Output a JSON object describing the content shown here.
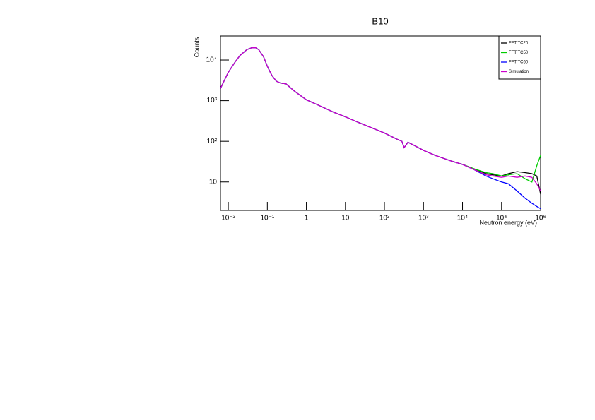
{
  "chart_data": {
    "type": "line",
    "title": "B10",
    "x_label": "Neutron energy (eV)",
    "y_label": "Counts",
    "x": [
      0.0063,
      0.008,
      0.01,
      0.015,
      0.02,
      0.03,
      0.04,
      0.05,
      0.06,
      0.08,
      0.1,
      0.13,
      0.17,
      0.22,
      0.3,
      0.5,
      1,
      2,
      5,
      10,
      20,
      50,
      100,
      200,
      280,
      320,
      400,
      600,
      1000,
      2000,
      5000,
      10000,
      20000,
      40000,
      60000,
      100000,
      150000,
      250000,
      400000,
      600000,
      800000,
      1000000
    ],
    "series": [
      {
        "name": "FFT TC20",
        "color": "#000000",
        "values": [
          2000,
          3200,
          5000,
          9000,
          13000,
          18000,
          20000,
          20000,
          18000,
          12000,
          7000,
          4200,
          3000,
          2700,
          2600,
          1700,
          1050,
          780,
          520,
          400,
          300,
          210,
          160,
          115,
          100,
          70,
          95,
          78,
          60,
          45,
          33,
          27,
          21,
          16,
          15,
          14,
          16,
          18,
          17,
          16,
          14,
          5
        ]
      },
      {
        "name": "FFT TC50",
        "color": "#00cc00",
        "values": [
          2000,
          3200,
          5000,
          9000,
          13000,
          18000,
          20000,
          20000,
          18000,
          12000,
          7000,
          4200,
          3000,
          2700,
          2600,
          1700,
          1050,
          780,
          520,
          400,
          300,
          210,
          160,
          115,
          100,
          70,
          95,
          78,
          60,
          45,
          33,
          27,
          21,
          17,
          16,
          14,
          15,
          16,
          12,
          10,
          25,
          45
        ]
      },
      {
        "name": "FFT TC60",
        "color": "#0000ff",
        "values": [
          2000,
          3200,
          5000,
          9000,
          13000,
          18000,
          20000,
          20000,
          18000,
          12000,
          7000,
          4200,
          3000,
          2700,
          2600,
          1700,
          1050,
          780,
          520,
          400,
          300,
          210,
          160,
          115,
          100,
          70,
          95,
          78,
          60,
          45,
          33,
          27,
          20,
          14,
          12,
          10,
          9,
          6,
          4,
          3,
          2.5,
          2.2
        ]
      },
      {
        "name": "Simulation",
        "color": "#cc00cc",
        "values": [
          2000,
          3200,
          5000,
          9000,
          13000,
          18000,
          20000,
          20000,
          18000,
          12000,
          7000,
          4200,
          3000,
          2700,
          2600,
          1700,
          1050,
          780,
          520,
          400,
          300,
          210,
          160,
          115,
          100,
          70,
          95,
          78,
          60,
          45,
          33,
          27,
          20,
          15,
          14,
          13,
          14,
          13,
          14,
          13,
          9,
          6
        ]
      }
    ],
    "xlog": true,
    "ylog": true,
    "xlim": [
      0.0063,
      1000000
    ],
    "ylim": [
      2,
      39000
    ],
    "xticks": [
      {
        "value": 0.01,
        "label": "10⁻²"
      },
      {
        "value": 0.1,
        "label": "10⁻¹"
      },
      1,
      10,
      {
        "value": 100,
        "label": "10²"
      },
      {
        "value": 1000,
        "label": "10³"
      },
      {
        "value": 10000,
        "label": "10⁴"
      },
      {
        "value": 100000,
        "label": "10⁵"
      },
      {
        "value": 1000000,
        "label": "10⁶"
      }
    ],
    "yticks": [
      10,
      {
        "value": 100,
        "label": "10²"
      },
      {
        "value": 1000,
        "label": "10³"
      },
      {
        "value": 10000,
        "label": "10⁴"
      }
    ],
    "legend": "top-right"
  }
}
